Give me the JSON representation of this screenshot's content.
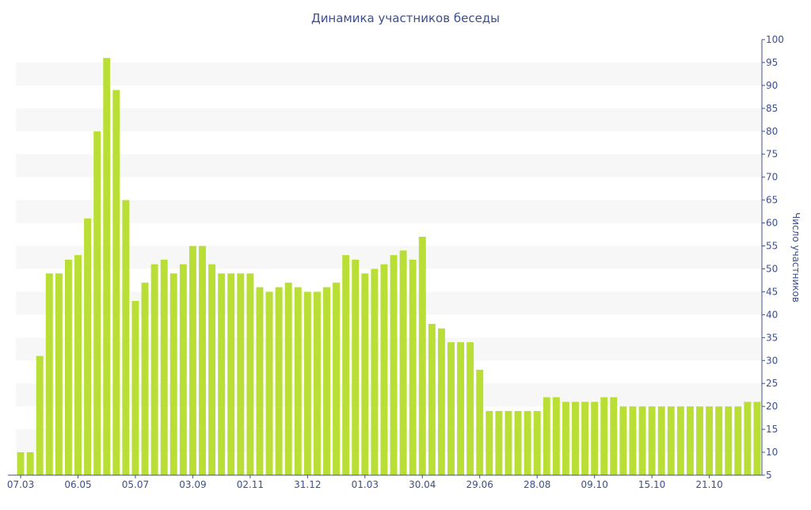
{
  "chart_data": {
    "type": "bar",
    "title": "Динамика участников беседы",
    "xlabel": "",
    "ylabel": "Число участников",
    "ylim": [
      5,
      100
    ],
    "yticks": [
      5,
      10,
      15,
      20,
      25,
      30,
      35,
      40,
      45,
      50,
      55,
      60,
      65,
      70,
      75,
      80,
      85,
      90,
      95,
      100
    ],
    "y_axis_position": "right",
    "grid": "alternating horizontal bands",
    "colors": {
      "bar": "#b9df36",
      "band": "#f7f7f7",
      "text": "#3d4f8c",
      "axis": "#3d4f8c"
    },
    "x_tick_labels": [
      {
        "index": 0,
        "label": "07.03"
      },
      {
        "index": 6,
        "label": "06.05"
      },
      {
        "index": 12,
        "label": "05.07"
      },
      {
        "index": 18,
        "label": "03.09"
      },
      {
        "index": 24,
        "label": "02.11"
      },
      {
        "index": 30,
        "label": "31.12"
      },
      {
        "index": 36,
        "label": "01.03"
      },
      {
        "index": 42,
        "label": "30.04"
      },
      {
        "index": 48,
        "label": "29.06"
      },
      {
        "index": 54,
        "label": "28.08"
      },
      {
        "index": 60,
        "label": "09.10"
      },
      {
        "index": 66,
        "label": "15.10"
      },
      {
        "index": 72,
        "label": "21.10"
      }
    ],
    "values": [
      10,
      10,
      31,
      49,
      49,
      52,
      53,
      61,
      80,
      96,
      89,
      65,
      43,
      47,
      51,
      52,
      49,
      51,
      55,
      55,
      51,
      49,
      49,
      49,
      49,
      46,
      45,
      46,
      47,
      46,
      45,
      45,
      46,
      47,
      53,
      52,
      49,
      50,
      51,
      53,
      54,
      52,
      57,
      38,
      37,
      34,
      34,
      34,
      28,
      19,
      19,
      19,
      19,
      19,
      19,
      22,
      22,
      21,
      21,
      21,
      21,
      22,
      22,
      20,
      20,
      20,
      20,
      20,
      20,
      20,
      20,
      20,
      20,
      20,
      20,
      20,
      21,
      21
    ]
  }
}
